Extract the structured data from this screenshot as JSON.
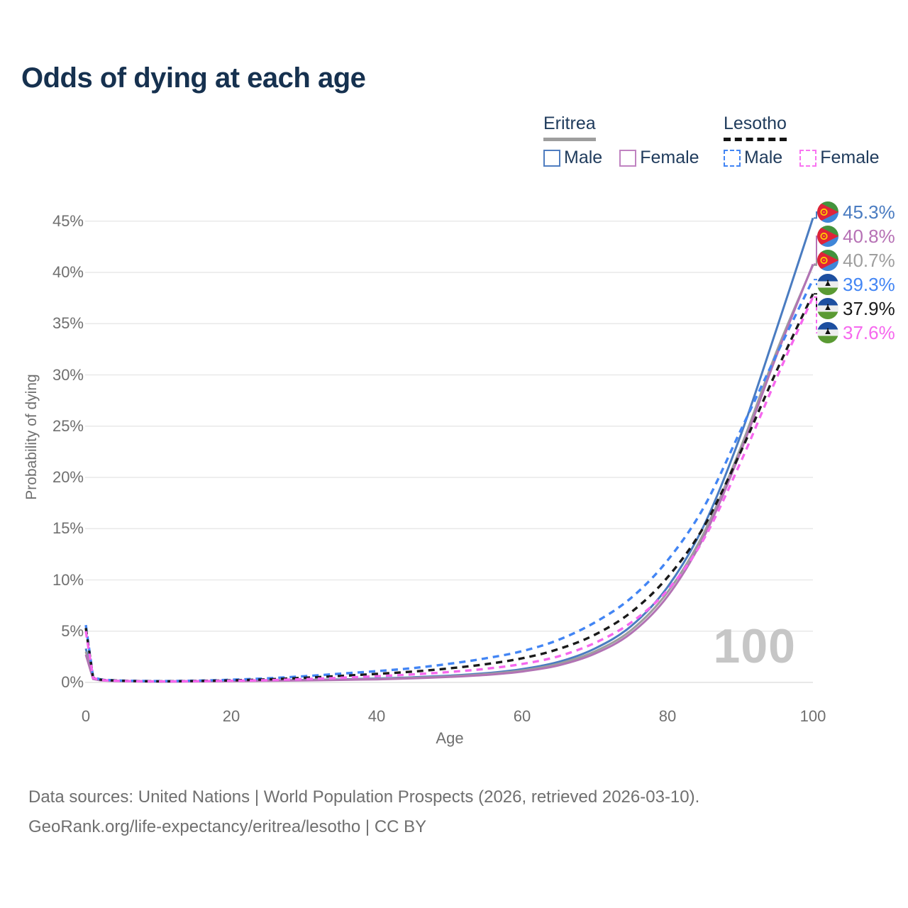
{
  "title": "Odds of dying at each age",
  "legend": {
    "groups": [
      {
        "name": "Eritrea",
        "line_style": "solid",
        "line_color": "#9e9e9e",
        "items": [
          {
            "label": "Male",
            "color": "#4f7dc0",
            "dashed": false
          },
          {
            "label": "Female",
            "color": "#c083c1",
            "dashed": false
          }
        ]
      },
      {
        "name": "Lesotho",
        "line_style": "dashed",
        "line_color": "#141414",
        "items": [
          {
            "label": "Male",
            "color": "#4285f4",
            "dashed": true
          },
          {
            "label": "Female",
            "color": "#f973f1",
            "dashed": true
          }
        ]
      }
    ]
  },
  "watermark": "100",
  "footer": {
    "line1": "Data sources: United Nations | World Population Prospects (2026, retrieved 2026-03-10).",
    "line2": "GeoRank.org/life-expectancy/eritrea/lesotho | CC BY"
  },
  "end_labels": [
    {
      "flag": "eritrea",
      "flag_icon": "eritrea-flag-icon",
      "value": "45.3%",
      "color": "#4a7cc1",
      "series": "Eritrea Male"
    },
    {
      "flag": "eritrea",
      "flag_icon": "eritrea-flag-icon",
      "value": "40.8%",
      "color": "#b671b5",
      "series": "Eritrea Female"
    },
    {
      "flag": "eritrea",
      "flag_icon": "eritrea-flag-icon",
      "value": "40.7%",
      "color": "#9e9e9e",
      "series": "Eritrea Total"
    },
    {
      "flag": "lesotho",
      "flag_icon": "lesotho-flag-icon",
      "value": "39.3%",
      "color": "#4285f4",
      "series": "Lesotho Male"
    },
    {
      "flag": "lesotho",
      "flag_icon": "lesotho-flag-icon",
      "value": "37.9%",
      "color": "#1a1a1a",
      "series": "Lesotho Total"
    },
    {
      "flag": "lesotho",
      "flag_icon": "lesotho-flag-icon",
      "value": "37.6%",
      "color": "#f667ee",
      "series": "Lesotho Female"
    }
  ],
  "chart_data": {
    "type": "line",
    "title": "Odds of dying at each age",
    "xlabel": "Age",
    "ylabel": "Probability of dying",
    "xlim": [
      0,
      100
    ],
    "ylim": [
      0,
      46
    ],
    "grid": "horizontal",
    "legend_position": "top-right",
    "x_ticks": [
      {
        "v": 0,
        "label": "0"
      },
      {
        "v": 20,
        "label": "20"
      },
      {
        "v": 40,
        "label": "40"
      },
      {
        "v": 60,
        "label": "60"
      },
      {
        "v": 80,
        "label": "80"
      },
      {
        "v": 100,
        "label": "100"
      }
    ],
    "y_ticks": [
      {
        "v": 0,
        "label": "0%"
      },
      {
        "v": 5,
        "label": "5%"
      },
      {
        "v": 10,
        "label": "10%"
      },
      {
        "v": 15,
        "label": "15%"
      },
      {
        "v": 20,
        "label": "20%"
      },
      {
        "v": 25,
        "label": "25%"
      },
      {
        "v": 30,
        "label": "30%"
      },
      {
        "v": 35,
        "label": "35%"
      },
      {
        "v": 40,
        "label": "40%"
      },
      {
        "v": 45,
        "label": "45%"
      }
    ],
    "x": [
      0,
      1,
      2,
      5,
      10,
      15,
      20,
      25,
      30,
      35,
      40,
      45,
      50,
      55,
      60,
      65,
      70,
      75,
      80,
      85,
      90,
      95,
      100
    ],
    "series": [
      {
        "name": "Eritrea Male",
        "country": "Eritrea",
        "sex": "Male",
        "style": "solid",
        "color": "#4a7cc1",
        "end_label": "45.3%",
        "values": [
          3.3,
          0.4,
          0.25,
          0.15,
          0.1,
          0.12,
          0.16,
          0.2,
          0.24,
          0.3,
          0.38,
          0.5,
          0.66,
          0.9,
          1.3,
          2.0,
          3.3,
          5.5,
          9.3,
          15.3,
          24.0,
          34.5,
          45.3
        ]
      },
      {
        "name": "Eritrea Total",
        "country": "Eritrea",
        "sex": "Both",
        "style": "solid",
        "color": "#9e9e9e",
        "end_label": "40.7%",
        "values": [
          3.0,
          0.36,
          0.22,
          0.13,
          0.09,
          0.11,
          0.14,
          0.18,
          0.22,
          0.27,
          0.34,
          0.45,
          0.59,
          0.81,
          1.17,
          1.82,
          3.02,
          5.1,
          8.8,
          14.6,
          22.8,
          32.3,
          40.7
        ]
      },
      {
        "name": "Eritrea Female",
        "country": "Eritrea",
        "sex": "Female",
        "style": "solid",
        "color": "#b273b4",
        "end_label": "40.8%",
        "values": [
          2.7,
          0.33,
          0.2,
          0.12,
          0.08,
          0.1,
          0.12,
          0.15,
          0.19,
          0.24,
          0.3,
          0.4,
          0.53,
          0.73,
          1.06,
          1.66,
          2.8,
          4.8,
          8.4,
          14.2,
          22.4,
          31.9,
          40.8
        ]
      },
      {
        "name": "Lesotho Male",
        "country": "Lesotho",
        "sex": "Male",
        "style": "dashed",
        "color": "#4285f4",
        "end_label": "39.3%",
        "values": [
          5.6,
          0.5,
          0.3,
          0.18,
          0.13,
          0.17,
          0.26,
          0.4,
          0.6,
          0.85,
          1.1,
          1.4,
          1.82,
          2.35,
          3.05,
          4.15,
          5.85,
          8.25,
          11.9,
          17.1,
          24.5,
          32.0,
          39.3
        ]
      },
      {
        "name": "Lesotho Total",
        "country": "Lesotho",
        "sex": "Both",
        "style": "dashed",
        "color": "#1a1a1a",
        "end_label": "37.9%",
        "values": [
          5.3,
          0.46,
          0.27,
          0.16,
          0.11,
          0.14,
          0.2,
          0.3,
          0.45,
          0.63,
          0.83,
          1.06,
          1.37,
          1.78,
          2.35,
          3.25,
          4.65,
          6.85,
          10.25,
          15.2,
          22.4,
          30.4,
          37.9
        ]
      },
      {
        "name": "Lesotho Female",
        "country": "Lesotho",
        "sex": "Female",
        "style": "dashed",
        "color": "#f667ee",
        "end_label": "37.6%",
        "values": [
          5.0,
          0.43,
          0.25,
          0.14,
          0.1,
          0.12,
          0.16,
          0.22,
          0.32,
          0.45,
          0.6,
          0.78,
          1.02,
          1.33,
          1.8,
          2.55,
          3.85,
          5.85,
          9.0,
          14.0,
          21.4,
          29.7,
          37.6
        ]
      }
    ]
  }
}
